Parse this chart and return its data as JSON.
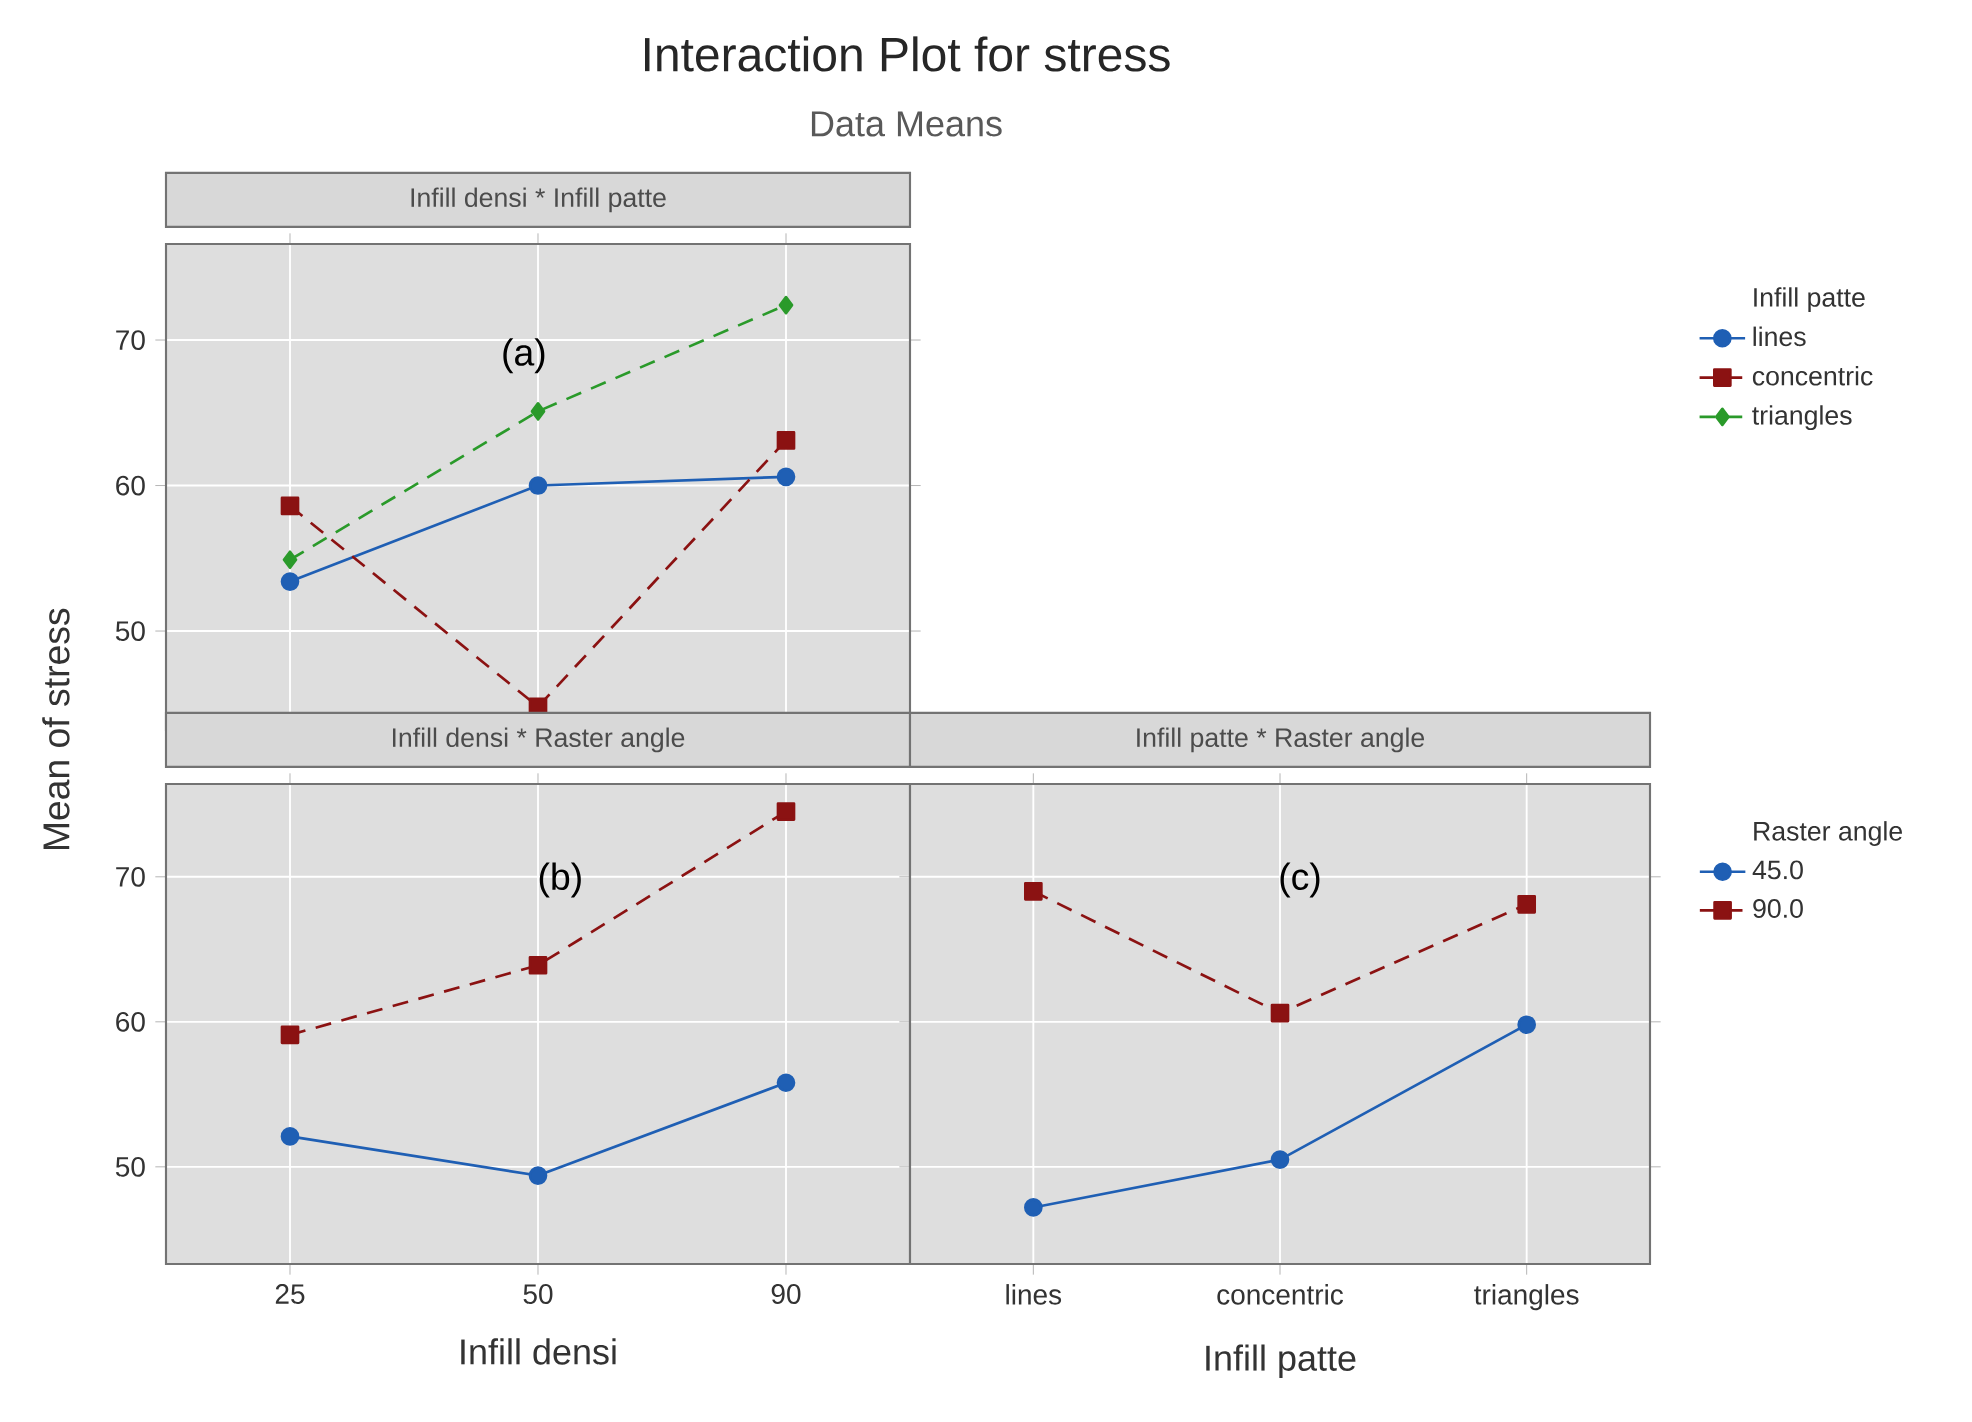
{
  "chart_data": [
    {
      "type": "other",
      "title": "Interaction Plot for stress",
      "subtitle": "Data Means"
    },
    {
      "type": "line",
      "title": "Infill densi * Infill patte",
      "categories": [
        "25",
        "50",
        "90"
      ],
      "ylim": [
        43.2,
        76.6
      ],
      "yticks": [
        50,
        60,
        70
      ],
      "tick_labels": "y",
      "grid": true,
      "legend": "right",
      "legend_title": "Infill patte",
      "annotations": [
        "(a)"
      ],
      "series": [
        {
          "name": "lines",
          "color": "#1f5fb4",
          "marker": "circle",
          "line_style": "solid",
          "values": [
            53.4,
            60.0,
            60.6
          ]
        },
        {
          "name": "concentric",
          "color": "#8b1212",
          "marker": "square",
          "line_style": "dashed",
          "values": [
            58.6,
            44.8,
            63.1
          ]
        },
        {
          "name": "triangles",
          "color": "#2a9a2a",
          "marker": "diamond",
          "line_style": "dashed",
          "values": [
            54.9,
            65.1,
            72.4
          ]
        }
      ]
    },
    {
      "type": "line",
      "title": "Infill densi * Raster angle",
      "categories": [
        "25",
        "50",
        "90"
      ],
      "xlabel": "Infill densi",
      "ylabel": "Mean of stress",
      "ylim": [
        43.3,
        76.4
      ],
      "yticks": [
        50,
        60,
        70
      ],
      "grid": true,
      "annotations": [
        "(b)"
      ],
      "series": [
        {
          "color": "#1f5fb4",
          "marker": "circle",
          "line_style": "solid",
          "values": [
            52.1,
            49.4,
            55.8
          ]
        },
        {
          "color": "#8b1212",
          "marker": "square",
          "line_style": "dashed",
          "values": [
            59.1,
            63.9,
            74.5
          ]
        }
      ]
    },
    {
      "type": "line",
      "title": "Infill patte * Raster angle",
      "categories": [
        "lines",
        "concentric",
        "triangles"
      ],
      "xlabel": "Infill patte",
      "ylim": [
        43.3,
        76.4
      ],
      "yticks": [
        50,
        60,
        70
      ],
      "tick_labels": "x",
      "grid": true,
      "legend": "right",
      "legend_title": "Raster angle",
      "annotations": [
        "(c)"
      ],
      "series": [
        {
          "name": "45.0",
          "color": "#1f5fb4",
          "marker": "circle",
          "line_style": "solid",
          "values": [
            47.2,
            50.5,
            59.8
          ]
        },
        {
          "name": "90.0",
          "color": "#8b1212",
          "marker": "square",
          "line_style": "dashed",
          "values": [
            69.0,
            60.6,
            68.1
          ]
        }
      ]
    }
  ]
}
